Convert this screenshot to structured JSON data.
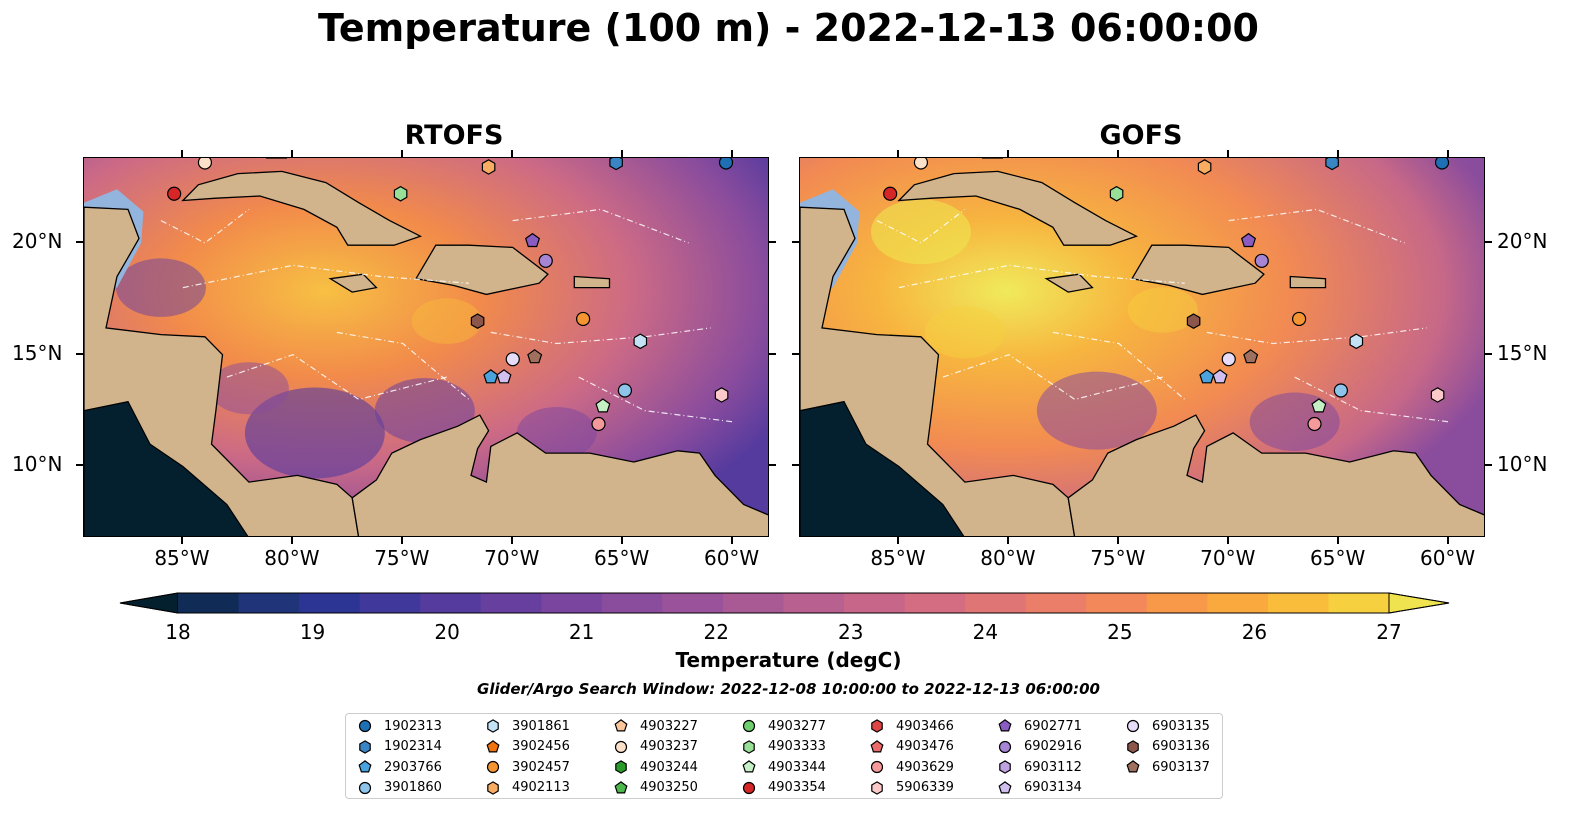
{
  "title": "Temperature (100 m) - 2022-12-13 06:00:00",
  "panels": [
    {
      "title": "RTOFS"
    },
    {
      "title": "GOFS"
    }
  ],
  "lon_ticks": [
    "85°W",
    "80°W",
    "75°W",
    "70°W",
    "65°W",
    "60°W"
  ],
  "lat_ticks": [
    "20°N",
    "15°N",
    "10°N"
  ],
  "colorbar": {
    "label": "Temperature (degC)",
    "min": 18,
    "max": 27,
    "ticks": [
      "18",
      "19",
      "20",
      "21",
      "22",
      "23",
      "24",
      "25",
      "26",
      "27"
    ],
    "colors": [
      "#04202e",
      "#0f2b56",
      "#1f3479",
      "#2d3594",
      "#41389c",
      "#553b9e",
      "#673f9f",
      "#79459f",
      "#8a4c9d",
      "#9a539a",
      "#a95a95",
      "#b8608f",
      "#c76689",
      "#d46d81",
      "#e07576",
      "#ea7e69",
      "#f3895a",
      "#f89849",
      "#faa93e",
      "#f9bc3b",
      "#f6d03f",
      "#efe44f"
    ]
  },
  "search_window": "Glider/Argo Search Window: 2022-12-08 10:00:00 to 2022-12-13 06:00:00",
  "legend": [
    {
      "id": "1902313",
      "marker": "circle",
      "color": "#1f6fb4"
    },
    {
      "id": "1902314",
      "marker": "hexagon",
      "color": "#3a86c4"
    },
    {
      "id": "2903766",
      "marker": "pentagon",
      "color": "#4aa3dd"
    },
    {
      "id": "3901860",
      "marker": "circle",
      "color": "#8ec3ea"
    },
    {
      "id": "3901861",
      "marker": "hexagon",
      "color": "#c4e2f6"
    },
    {
      "id": "3902456",
      "marker": "pentagon",
      "color": "#f0730f"
    },
    {
      "id": "3902457",
      "marker": "circle",
      "color": "#f59432"
    },
    {
      "id": "4902113",
      "marker": "hexagon",
      "color": "#f8ad63"
    },
    {
      "id": "4903227",
      "marker": "pentagon",
      "color": "#fbc79a"
    },
    {
      "id": "4903237",
      "marker": "circle",
      "color": "#fde0c8"
    },
    {
      "id": "4903244",
      "marker": "hexagon",
      "color": "#2a9a2a"
    },
    {
      "id": "4903250",
      "marker": "pentagon",
      "color": "#4db84d"
    },
    {
      "id": "4903277",
      "marker": "circle",
      "color": "#6fcf6f"
    },
    {
      "id": "4903333",
      "marker": "hexagon",
      "color": "#98e098"
    },
    {
      "id": "4903344",
      "marker": "pentagon",
      "color": "#c5f0c5"
    },
    {
      "id": "4903354",
      "marker": "circle",
      "color": "#d62728"
    },
    {
      "id": "4903466",
      "marker": "hexagon",
      "color": "#e04546"
    },
    {
      "id": "4903476",
      "marker": "pentagon",
      "color": "#ec6a6a"
    },
    {
      "id": "4903629",
      "marker": "circle",
      "color": "#f49a9a"
    },
    {
      "id": "5906339",
      "marker": "hexagon",
      "color": "#fbc9c9"
    },
    {
      "id": "6902771",
      "marker": "pentagon",
      "color": "#8a5cc2"
    },
    {
      "id": "6902916",
      "marker": "circle",
      "color": "#a585d4"
    },
    {
      "id": "6903112",
      "marker": "hexagon",
      "color": "#bea3e0"
    },
    {
      "id": "6903134",
      "marker": "pentagon",
      "color": "#d1bff0"
    },
    {
      "id": "6903135",
      "marker": "circle",
      "color": "#e7dcf7"
    },
    {
      "id": "6903136",
      "marker": "hexagon",
      "color": "#8c564b"
    },
    {
      "id": "6903137",
      "marker": "pentagon",
      "color": "#a0705f"
    }
  ],
  "floats": [
    {
      "lon": -85.4,
      "lat": 22.2,
      "marker": "circle",
      "color": "#d62728"
    },
    {
      "lon": -84.0,
      "lat": 23.6,
      "marker": "circle",
      "color": "#fde0c8"
    },
    {
      "lon": -75.1,
      "lat": 22.2,
      "marker": "hexagon",
      "color": "#98e098"
    },
    {
      "lon": -71.1,
      "lat": 23.4,
      "marker": "hexagon",
      "color": "#f8ad63"
    },
    {
      "lon": -65.3,
      "lat": 23.6,
      "marker": "hexagon",
      "color": "#3a86c4"
    },
    {
      "lon": -60.3,
      "lat": 23.6,
      "marker": "circle",
      "color": "#1f6fb4"
    },
    {
      "lon": -69.1,
      "lat": 20.1,
      "marker": "pentagon",
      "color": "#8a5cc2"
    },
    {
      "lon": -68.5,
      "lat": 19.2,
      "marker": "circle",
      "color": "#a585d4"
    },
    {
      "lon": -71.6,
      "lat": 16.5,
      "marker": "hexagon",
      "color": "#8c564b"
    },
    {
      "lon": -66.8,
      "lat": 16.6,
      "marker": "circle",
      "color": "#f59432"
    },
    {
      "lon": -64.2,
      "lat": 15.6,
      "marker": "hexagon",
      "color": "#c4e2f6"
    },
    {
      "lon": -70.0,
      "lat": 14.8,
      "marker": "circle",
      "color": "#e7dcf7"
    },
    {
      "lon": -69.0,
      "lat": 14.9,
      "marker": "pentagon",
      "color": "#a0705f"
    },
    {
      "lon": -71.0,
      "lat": 14.0,
      "marker": "pentagon",
      "color": "#4aa3dd"
    },
    {
      "lon": -70.4,
      "lat": 14.0,
      "marker": "pentagon",
      "color": "#d1bff0"
    },
    {
      "lon": -64.9,
      "lat": 13.4,
      "marker": "circle",
      "color": "#8ec3ea"
    },
    {
      "lon": -65.9,
      "lat": 12.7,
      "marker": "pentagon",
      "color": "#c5f0c5"
    },
    {
      "lon": -66.1,
      "lat": 11.9,
      "marker": "circle",
      "color": "#f49a9a"
    },
    {
      "lon": -60.5,
      "lat": 13.2,
      "marker": "hexagon",
      "color": "#fbc9c9"
    }
  ]
}
